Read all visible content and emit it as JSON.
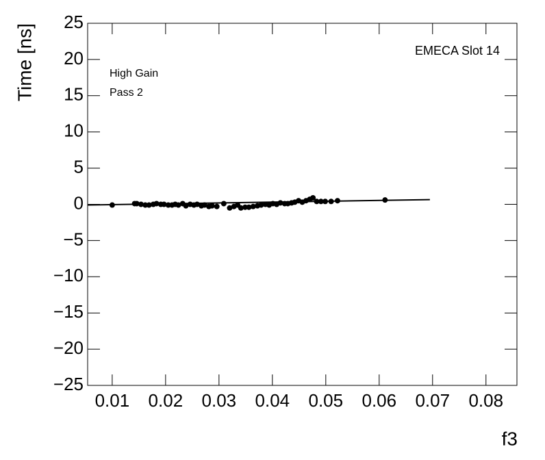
{
  "chart_data": {
    "type": "scatter",
    "ylabel": "Time [ns]",
    "xlabel": "f3",
    "annotations": [
      "EMECA Slot 14",
      "High Gain",
      "Pass 2"
    ],
    "color": "#000000",
    "xlim": [
      0.0054,
      0.0858
    ],
    "ylim": [
      -25,
      25
    ],
    "xticks": [
      0.01,
      0.02,
      0.03,
      0.04,
      0.05,
      0.06,
      0.07,
      0.08
    ],
    "yticks": [
      {
        "value": -25,
        "label": "−25"
      },
      {
        "value": -20,
        "label": "−20"
      },
      {
        "value": -15,
        "label": "−15"
      },
      {
        "value": -10,
        "label": "−10"
      },
      {
        "value": -5,
        "label": "−5"
      },
      0,
      5,
      10,
      15,
      20,
      25
    ],
    "x": [
      0.01,
      0.0142,
      0.0146,
      0.0154,
      0.0162,
      0.0169,
      0.0177,
      0.0183,
      0.0191,
      0.0197,
      0.0205,
      0.0212,
      0.0218,
      0.0224,
      0.0232,
      0.0238,
      0.0246,
      0.0253,
      0.0259,
      0.0267,
      0.0273,
      0.0281,
      0.0287,
      0.0296,
      0.0309,
      0.032,
      0.0328,
      0.0335,
      0.0341,
      0.0349,
      0.0356,
      0.0364,
      0.0372,
      0.0379,
      0.0387,
      0.0394,
      0.0401,
      0.0408,
      0.0415,
      0.0423,
      0.0429,
      0.0436,
      0.0442,
      0.0449,
      0.0456,
      0.0463,
      0.047,
      0.0476,
      0.0483,
      0.0491,
      0.0499,
      0.051,
      0.0522,
      0.0611
    ],
    "values": [
      -0.1,
      0.1,
      0.1,
      0.0,
      -0.1,
      -0.1,
      0.0,
      0.1,
      0.0,
      0.0,
      -0.1,
      -0.1,
      0.0,
      -0.1,
      0.1,
      -0.2,
      0.0,
      -0.1,
      0.0,
      -0.2,
      -0.1,
      -0.3,
      -0.2,
      -0.3,
      0.1,
      -0.5,
      -0.3,
      -0.1,
      -0.5,
      -0.4,
      -0.4,
      -0.3,
      -0.2,
      -0.1,
      0.0,
      -0.1,
      0.1,
      0.0,
      0.2,
      0.1,
      0.1,
      0.2,
      0.3,
      0.5,
      0.3,
      0.5,
      0.7,
      0.9,
      0.4,
      0.4,
      0.4,
      0.4,
      0.5,
      0.6
    ],
    "fit": {
      "x": [
        0.0054,
        0.0695
      ],
      "values": [
        -0.1,
        0.65
      ]
    }
  }
}
